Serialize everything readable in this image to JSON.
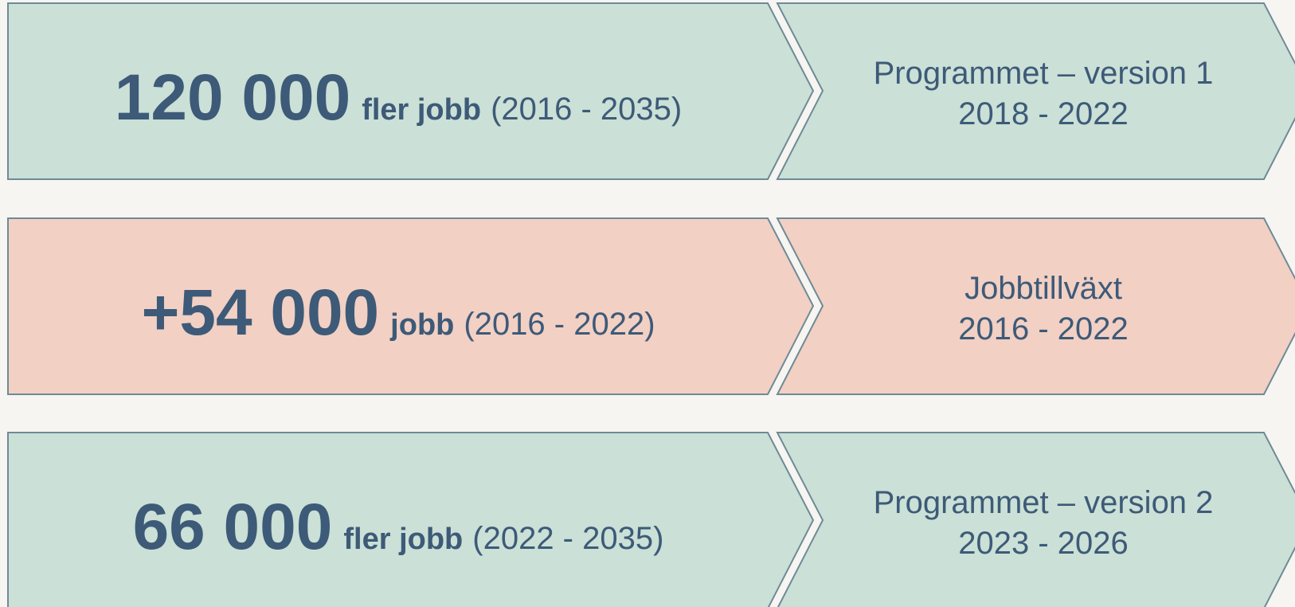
{
  "rows": [
    {
      "number": "120 000",
      "unit": "fler jobb",
      "period": "(2016 - 2035)",
      "label": [
        "Programmet – version 1",
        "2018 - 2022"
      ]
    },
    {
      "number": "+54 000",
      "unit": "jobb",
      "period": "(2016 - 2022)",
      "label": [
        "Jobbtillväxt",
        "2016 - 2022"
      ]
    },
    {
      "number": "66 000",
      "unit": "fler jobb",
      "period": "(2022 - 2035)",
      "label": [
        "Programmet – version 2",
        "2023 - 2026"
      ]
    }
  ]
}
